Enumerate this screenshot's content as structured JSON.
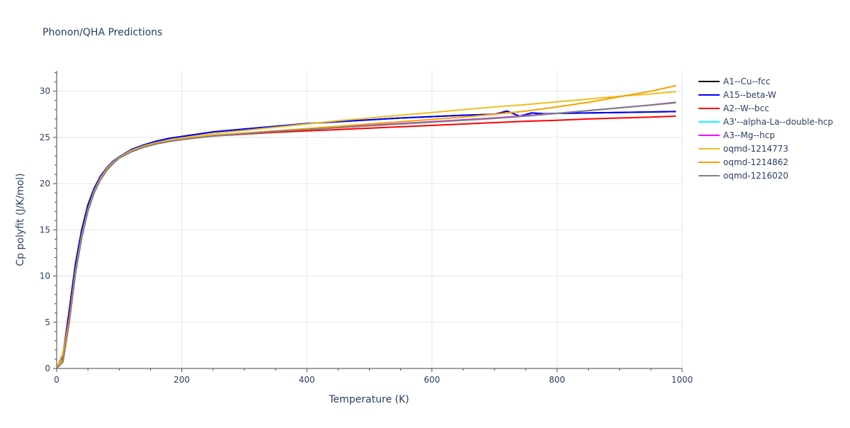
{
  "chart_data": {
    "type": "line",
    "title": "Phonon/QHA Predictions",
    "xlabel": "Temperature (K)",
    "ylabel": "Cp polyfit (J/K/mol)",
    "xlim": [
      0,
      1000
    ],
    "ylim": [
      0,
      32.2
    ],
    "xticks": [
      0,
      200,
      400,
      600,
      800,
      1000
    ],
    "yticks": [
      0,
      5,
      10,
      15,
      20,
      25,
      30
    ],
    "grid": true,
    "legend_position": "right",
    "series": [
      {
        "name": "A1--Cu--fcc",
        "color": "#000000",
        "x": [
          0,
          10,
          20,
          30,
          40,
          50,
          60,
          70,
          80,
          90,
          100,
          120,
          140,
          160,
          180,
          200,
          250,
          300,
          350,
          400,
          450,
          500,
          550,
          600,
          650,
          700,
          720,
          740,
          760,
          780,
          800,
          850,
          900,
          950,
          990
        ],
        "y": [
          0,
          1.4,
          6.2,
          11.3,
          15.0,
          17.7,
          19.5,
          20.8,
          21.7,
          22.4,
          22.9,
          23.7,
          24.2,
          24.6,
          24.9,
          25.1,
          25.6,
          25.9,
          26.2,
          26.5,
          26.7,
          26.9,
          27.1,
          27.25,
          27.4,
          27.5,
          27.85,
          27.3,
          27.65,
          27.55,
          27.6,
          27.65,
          27.7,
          27.75,
          27.8
        ]
      },
      {
        "name": "A15--beta-W",
        "color": "#0000ff",
        "x": [
          0,
          10,
          20,
          30,
          40,
          50,
          60,
          70,
          80,
          90,
          100,
          120,
          140,
          160,
          180,
          200,
          250,
          300,
          350,
          400,
          450,
          500,
          550,
          600,
          650,
          700,
          720,
          740,
          760,
          780,
          800,
          850,
          900,
          950,
          990
        ],
        "y": [
          0,
          1.4,
          6.2,
          11.3,
          15.0,
          17.7,
          19.5,
          20.8,
          21.7,
          22.4,
          22.9,
          23.7,
          24.2,
          24.6,
          24.9,
          25.1,
          25.6,
          25.9,
          26.2,
          26.5,
          26.7,
          26.9,
          27.1,
          27.25,
          27.4,
          27.5,
          27.85,
          27.3,
          27.65,
          27.55,
          27.6,
          27.65,
          27.7,
          27.75,
          27.8
        ]
      },
      {
        "name": "A2--W--bcc",
        "color": "#ff0000",
        "x": [
          0,
          10,
          20,
          30,
          40,
          50,
          60,
          70,
          80,
          90,
          100,
          120,
          140,
          160,
          180,
          200,
          250,
          300,
          350,
          400,
          450,
          500,
          550,
          600,
          650,
          700,
          750,
          800,
          850,
          900,
          950,
          990
        ],
        "y": [
          0,
          1.6,
          5.5,
          10.5,
          14.3,
          17.1,
          19.1,
          20.5,
          21.5,
          22.2,
          22.8,
          23.5,
          24.0,
          24.35,
          24.6,
          24.8,
          25.15,
          25.35,
          25.55,
          25.7,
          25.85,
          26.0,
          26.15,
          26.3,
          26.45,
          26.6,
          26.75,
          26.85,
          27.0,
          27.1,
          27.2,
          27.3
        ]
      },
      {
        "name": "A3'--alpha-La--double-hcp",
        "color": "#00ffff",
        "x": [
          0,
          10,
          20,
          30,
          40,
          50,
          60,
          70,
          80,
          90,
          100,
          120,
          140,
          160,
          180,
          200,
          250,
          300,
          350,
          400,
          450,
          500,
          550,
          600,
          650,
          700,
          750,
          800,
          850,
          900,
          950,
          990
        ],
        "y": [
          0,
          0.8,
          5.0,
          10.3,
          14.2,
          17.1,
          19.1,
          20.5,
          21.5,
          22.2,
          22.8,
          23.5,
          24.0,
          24.35,
          24.6,
          24.8,
          25.2,
          25.45,
          25.7,
          25.9,
          26.1,
          26.3,
          26.5,
          26.7,
          26.9,
          27.1,
          27.35,
          27.6,
          27.9,
          28.2,
          28.5,
          28.8
        ]
      },
      {
        "name": "A3--Mg--hcp",
        "color": "#ff00ff",
        "x": [
          0,
          10,
          20,
          30,
          40,
          50,
          60,
          70,
          80,
          90,
          100,
          120,
          140,
          160,
          180,
          200,
          250,
          300,
          350,
          400,
          450,
          500,
          550,
          600,
          650,
          700,
          750,
          800,
          850,
          900,
          950,
          990
        ],
        "y": [
          0,
          0.8,
          5.0,
          10.3,
          14.2,
          17.1,
          19.1,
          20.5,
          21.5,
          22.2,
          22.8,
          23.5,
          24.0,
          24.35,
          24.6,
          24.8,
          25.2,
          25.45,
          25.7,
          25.9,
          26.1,
          26.3,
          26.5,
          26.7,
          26.9,
          27.1,
          27.35,
          27.6,
          27.9,
          28.2,
          28.5,
          28.8
        ]
      },
      {
        "name": "oqmd-1214773",
        "color": "#ebbf1f",
        "x": [
          0,
          10,
          20,
          30,
          40,
          50,
          60,
          70,
          80,
          90,
          100,
          120,
          140,
          160,
          180,
          200,
          250,
          300,
          350,
          400,
          450,
          500,
          550,
          600,
          650,
          700,
          750,
          800,
          850,
          900,
          950,
          990
        ],
        "y": [
          0,
          1.0,
          5.2,
          10.5,
          14.4,
          17.2,
          19.2,
          20.6,
          21.6,
          22.3,
          22.85,
          23.6,
          24.1,
          24.45,
          24.7,
          24.95,
          25.4,
          25.75,
          26.1,
          26.45,
          26.8,
          27.1,
          27.4,
          27.7,
          28.0,
          28.3,
          28.55,
          28.85,
          29.15,
          29.45,
          29.7,
          29.95
        ]
      },
      {
        "name": "oqmd-1214862",
        "color": "#f5a300",
        "x": [
          0,
          10,
          20,
          30,
          40,
          50,
          60,
          70,
          80,
          90,
          100,
          120,
          140,
          160,
          180,
          200,
          250,
          300,
          350,
          400,
          450,
          500,
          550,
          600,
          650,
          700,
          750,
          800,
          850,
          900,
          950,
          990
        ],
        "y": [
          0,
          1.6,
          5.2,
          10.4,
          14.3,
          17.1,
          19.1,
          20.5,
          21.5,
          22.2,
          22.8,
          23.5,
          24.0,
          24.35,
          24.6,
          24.8,
          25.2,
          25.45,
          25.7,
          25.95,
          26.2,
          26.45,
          26.7,
          26.95,
          27.2,
          27.5,
          27.85,
          28.3,
          28.8,
          29.4,
          30.0,
          30.6
        ]
      },
      {
        "name": "oqmd-1216020",
        "color": "#808080",
        "x": [
          0,
          10,
          20,
          30,
          40,
          50,
          60,
          70,
          80,
          90,
          100,
          120,
          140,
          160,
          180,
          200,
          250,
          300,
          350,
          400,
          450,
          500,
          550,
          600,
          650,
          700,
          750,
          800,
          850,
          900,
          950,
          990
        ],
        "y": [
          0,
          0.7,
          4.9,
          10.2,
          14.1,
          17.0,
          19.0,
          20.4,
          21.4,
          22.15,
          22.75,
          23.45,
          23.95,
          24.3,
          24.55,
          24.75,
          25.15,
          25.4,
          25.65,
          25.85,
          26.05,
          26.25,
          26.45,
          26.65,
          26.85,
          27.05,
          27.3,
          27.6,
          27.9,
          28.2,
          28.5,
          28.75
        ]
      }
    ]
  }
}
